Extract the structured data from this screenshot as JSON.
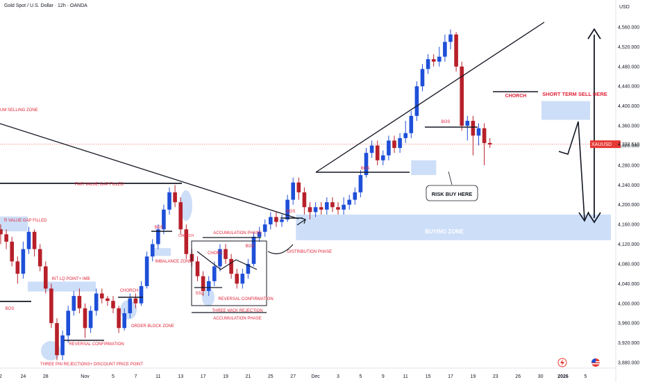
{
  "header": {
    "title": "Gold Spot / U.S. Dollar · 12h · OANDA",
    "currency": "USD"
  },
  "price_tag": {
    "symbol": "XAUUSD",
    "price": "4,322.610",
    "color": "#e53935"
  },
  "colors": {
    "up": "#1e4fd8",
    "down": "#b7202a",
    "zone": "#bcd3f5",
    "label": "#e0243a"
  },
  "icons": {
    "flash": "lightning-icon",
    "flag": "us-flag-icon"
  },
  "chart_data": {
    "type": "candlestick",
    "title": "Gold Spot / U.S. Dollar · 12h · OANDA",
    "ylim": [
      3860,
      4580
    ],
    "y_ticks": [
      3880,
      3920,
      3960,
      4000,
      4040,
      4080,
      4120,
      4160,
      4200,
      4240,
      4280,
      4320,
      4360,
      4400,
      4440,
      4480,
      4520,
      4560
    ],
    "y_tick_labels": [
      "3,880.000",
      "3,920.000",
      "3,960.000",
      "4,000.000",
      "4,040.000",
      "4,080.000",
      "4,120.000",
      "4,160.000",
      "4,200.000",
      "4,240.000",
      "4,280.000",
      "4,320.000",
      "4,360.000",
      "4,400.000",
      "4,440.000",
      "4,480.000",
      "4,520.000",
      "4,560.000"
    ],
    "x_ticks": [
      {
        "label": "2",
        "i": 0
      },
      {
        "label": "24",
        "i": 4
      },
      {
        "label": "28",
        "i": 8
      },
      {
        "label": "Nov",
        "i": 15
      },
      {
        "label": "5",
        "i": 20
      },
      {
        "label": "7",
        "i": 24
      },
      {
        "label": "11",
        "i": 28
      },
      {
        "label": "13",
        "i": 32
      },
      {
        "label": "17",
        "i": 36
      },
      {
        "label": "19",
        "i": 40
      },
      {
        "label": "21",
        "i": 44
      },
      {
        "label": "25",
        "i": 48
      },
      {
        "label": "27",
        "i": 52
      },
      {
        "label": "Dec",
        "i": 56
      },
      {
        "label": "3",
        "i": 60
      },
      {
        "label": "5",
        "i": 64
      },
      {
        "label": "9",
        "i": 68
      },
      {
        "label": "11",
        "i": 72
      },
      {
        "label": "15",
        "i": 76
      },
      {
        "label": "17",
        "i": 80
      },
      {
        "label": "19",
        "i": 84
      },
      {
        "label": "23",
        "i": 88
      },
      {
        "label": "26",
        "i": 92
      },
      {
        "label": "30",
        "i": 96
      },
      {
        "label": "2026",
        "i": 100
      },
      {
        "label": "5",
        "i": 104
      }
    ],
    "last_price": 4322.61,
    "candles": [
      [
        4150,
        4140,
        4160,
        4120
      ],
      [
        4140,
        4125,
        4150,
        4110
      ],
      [
        4125,
        4085,
        4135,
        4075
      ],
      [
        4085,
        4060,
        4095,
        4040
      ],
      [
        4060,
        4110,
        4125,
        4050
      ],
      [
        4110,
        4145,
        4155,
        4100
      ],
      [
        4145,
        4110,
        4150,
        4095
      ],
      [
        4110,
        4075,
        4120,
        4065
      ],
      [
        4075,
        4030,
        4085,
        4020
      ],
      [
        4030,
        3960,
        4040,
        3950
      ],
      [
        3960,
        3895,
        3970,
        3885
      ],
      [
        3895,
        3935,
        3945,
        3885
      ],
      [
        3935,
        3985,
        3995,
        3920
      ],
      [
        3985,
        4015,
        4025,
        3975
      ],
      [
        4015,
        3990,
        4030,
        3980
      ],
      [
        3990,
        3950,
        4000,
        3930
      ],
      [
        3950,
        3985,
        3995,
        3940
      ],
      [
        3985,
        4020,
        4030,
        3975
      ],
      [
        4020,
        4010,
        4030,
        4000
      ],
      [
        4010,
        4005,
        4015,
        3995
      ],
      [
        4005,
        3990,
        4015,
        3980
      ],
      [
        3990,
        3950,
        3995,
        3940
      ],
      [
        3950,
        3980,
        3990,
        3945
      ],
      [
        3980,
        4010,
        4020,
        3970
      ],
      [
        4010,
        4000,
        4020,
        3990
      ],
      [
        4000,
        4035,
        4045,
        3995
      ],
      [
        4035,
        4095,
        4105,
        4030
      ],
      [
        4095,
        4120,
        4130,
        4085
      ],
      [
        4120,
        4150,
        4160,
        4110
      ],
      [
        4150,
        4190,
        4200,
        4140
      ],
      [
        4190,
        4225,
        4235,
        4180
      ],
      [
        4225,
        4205,
        4240,
        4195
      ],
      [
        4205,
        4150,
        4215,
        4140
      ],
      [
        4150,
        4100,
        4160,
        4090
      ],
      [
        4100,
        4085,
        4110,
        4075
      ],
      [
        4085,
        4055,
        4095,
        4045
      ],
      [
        4055,
        4025,
        4065,
        4015
      ],
      [
        4025,
        4045,
        4055,
        4015
      ],
      [
        4045,
        4075,
        4085,
        4035
      ],
      [
        4075,
        4110,
        4120,
        4065
      ],
      [
        4110,
        4090,
        4120,
        4080
      ],
      [
        4090,
        4060,
        4100,
        4050
      ],
      [
        4060,
        4040,
        4070,
        4030
      ],
      [
        4040,
        4060,
        4070,
        4030
      ],
      [
        4060,
        4080,
        4090,
        4050
      ],
      [
        4080,
        4135,
        4145,
        4075
      ],
      [
        4135,
        4145,
        4155,
        4125
      ],
      [
        4145,
        4160,
        4170,
        4135
      ],
      [
        4160,
        4175,
        4185,
        4150
      ],
      [
        4175,
        4165,
        4185,
        4155
      ],
      [
        4165,
        4170,
        4180,
        4155
      ],
      [
        4170,
        4210,
        4220,
        4165
      ],
      [
        4210,
        4245,
        4255,
        4200
      ],
      [
        4245,
        4225,
        4255,
        4210
      ],
      [
        4225,
        4195,
        4235,
        4180
      ],
      [
        4195,
        4185,
        4205,
        4170
      ],
      [
        4185,
        4195,
        4205,
        4175
      ],
      [
        4195,
        4190,
        4205,
        4180
      ],
      [
        4190,
        4205,
        4215,
        4180
      ],
      [
        4205,
        4195,
        4215,
        4185
      ],
      [
        4195,
        4190,
        4205,
        4180
      ],
      [
        4190,
        4200,
        4215,
        4180
      ],
      [
        4200,
        4210,
        4220,
        4190
      ],
      [
        4210,
        4225,
        4235,
        4200
      ],
      [
        4225,
        4260,
        4270,
        4215
      ],
      [
        4260,
        4305,
        4315,
        4255
      ],
      [
        4305,
        4320,
        4330,
        4295
      ],
      [
        4320,
        4290,
        4330,
        4280
      ],
      [
        4290,
        4300,
        4310,
        4280
      ],
      [
        4300,
        4330,
        4340,
        4290
      ],
      [
        4330,
        4315,
        4340,
        4305
      ],
      [
        4315,
        4335,
        4345,
        4305
      ],
      [
        4335,
        4345,
        4370,
        4325
      ],
      [
        4345,
        4380,
        4390,
        4335
      ],
      [
        4380,
        4440,
        4450,
        4370
      ],
      [
        4440,
        4475,
        4485,
        4430
      ],
      [
        4475,
        4495,
        4505,
        4465
      ],
      [
        4495,
        4490,
        4505,
        4480
      ],
      [
        4490,
        4500,
        4520,
        4480
      ],
      [
        4500,
        4530,
        4545,
        4490
      ],
      [
        4530,
        4545,
        4555,
        4515
      ],
      [
        4545,
        4480,
        4550,
        4470
      ],
      [
        4480,
        4360,
        4490,
        4350
      ],
      [
        4360,
        4370,
        4380,
        4330
      ],
      [
        4370,
        4340,
        4380,
        4300
      ],
      [
        4340,
        4355,
        4365,
        4320
      ],
      [
        4355,
        4325,
        4365,
        4280
      ],
      [
        4325,
        4322,
        4335,
        4315
      ]
    ]
  },
  "annotations": {
    "selling_zone": "UM SELLING ZONE",
    "fvg_filled_top": "FAIR VALUE GAP FILLED",
    "fvg_filled_left": "R VALUE GAP FILLED",
    "int_lq": "INT LQ POINT+ IMB",
    "bos_left": "BOS",
    "reversal_conf_low": "REVERSAL CONFIRMATION",
    "three_pin": "THREE PIN REJECTIONS+ DISCOUNT PRICE POINT",
    "chorch_nov": "CHORCH",
    "order_block": "ORDER BLOCK ZONE",
    "bos_nov": "BOS",
    "chorch_small": "CHORCH",
    "imbalance": "IMBALANCE ZONE",
    "accumulation_top": "ACCUMULATION PHASE",
    "chorch_mid": "CHORC",
    "bos_mid": "BOS",
    "ssl": "SSL",
    "reversal_conf_mid": "REVERSAL CONFIRMATION",
    "three_wick": "THREE WICK REJECTION",
    "accumulation_bottom": "ACCUMULATION PHASE",
    "bos_dist": "BOS",
    "distribution": "DISTRIBUTION PHASE",
    "bos_dec": "BOS",
    "bos_dec_high": "BOS",
    "risk_buy": "RISK BUY HERE",
    "buying_zone": "BUYING ZONE",
    "chorch_top": "CHORCH",
    "short_sell": "SHORT TERM SELL HERE"
  }
}
